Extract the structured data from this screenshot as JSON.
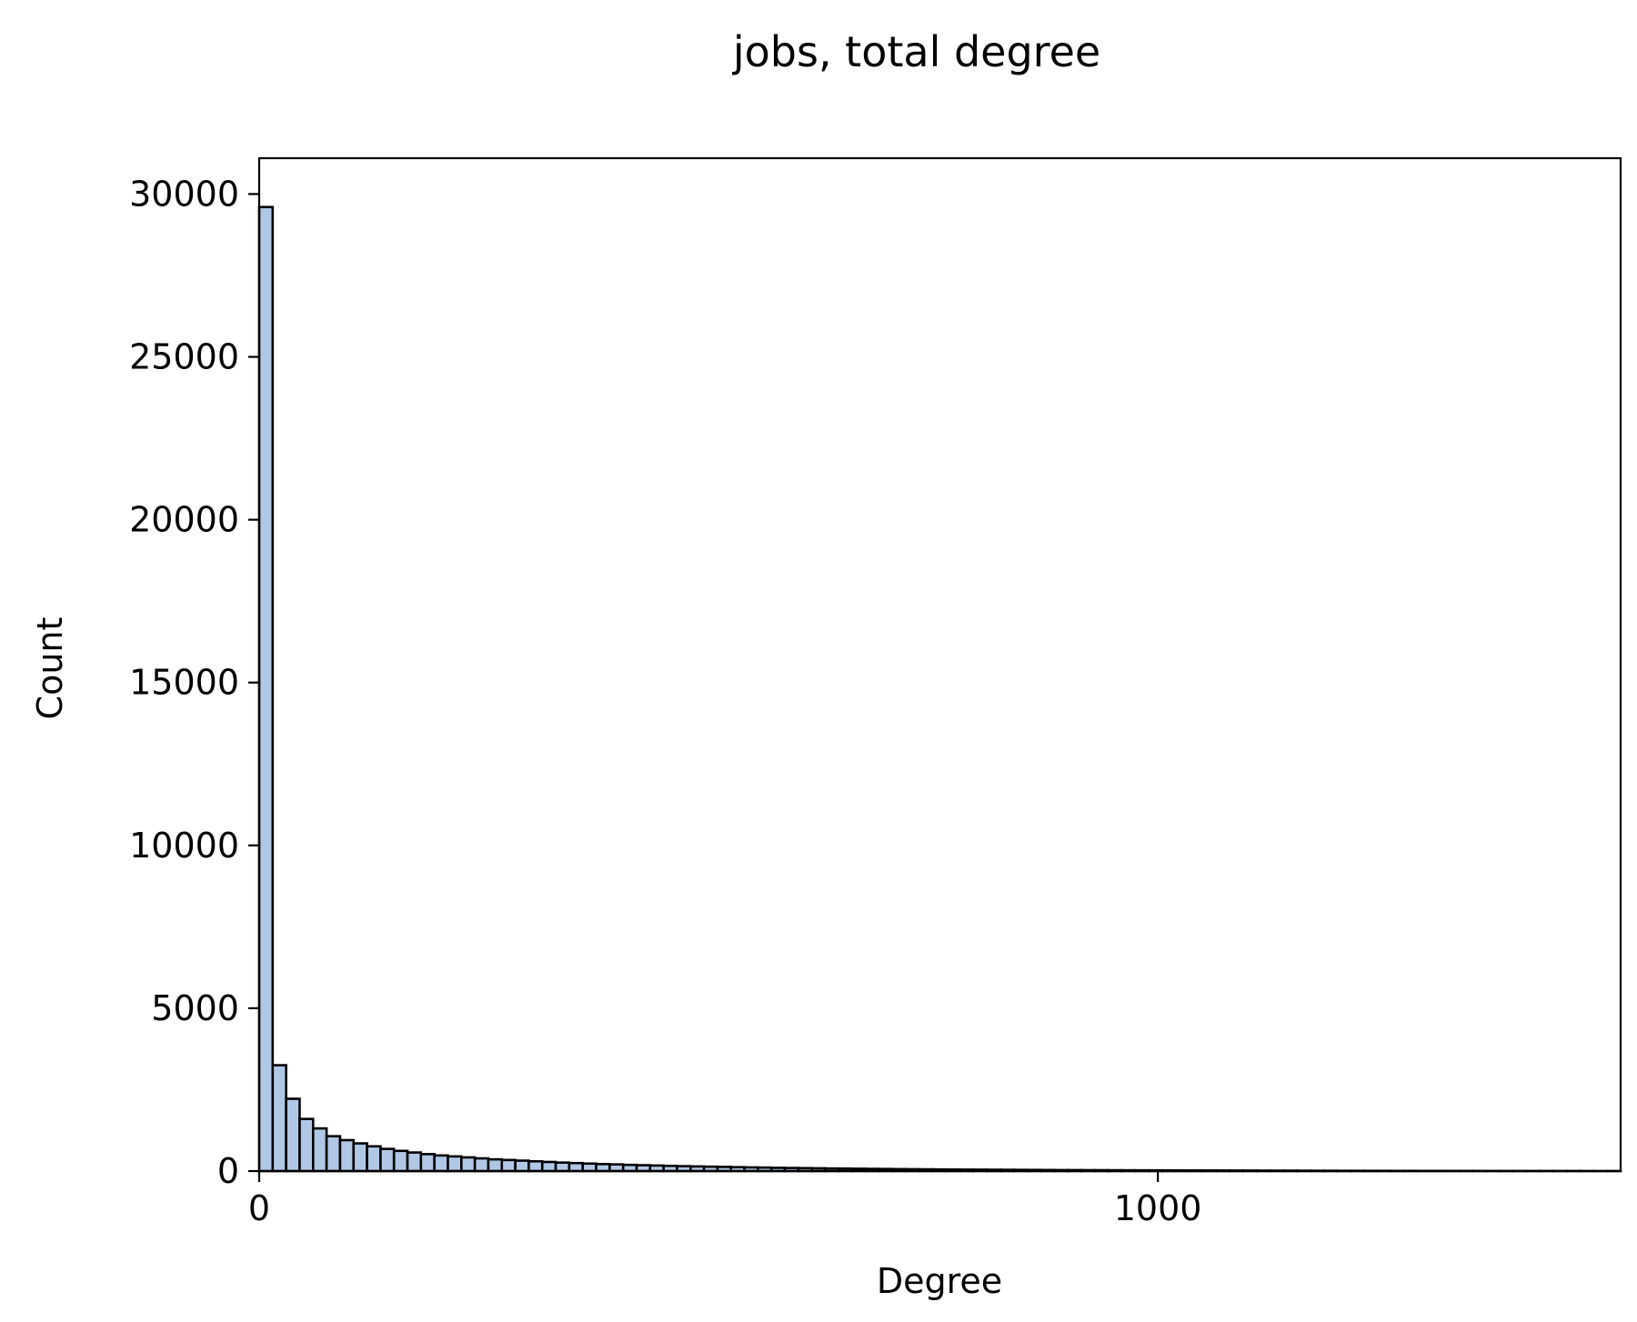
{
  "chart_data": {
    "type": "bar",
    "title": "jobs, total degree",
    "xlabel": "Degree",
    "ylabel": "Count",
    "xlim": [
      0,
      1515
    ],
    "ylim": [
      0,
      31100
    ],
    "xticks": [
      0,
      1000
    ],
    "yticks": [
      0,
      5000,
      10000,
      15000,
      20000,
      25000,
      30000
    ],
    "grid": false,
    "legend": "none",
    "bin_width": 15,
    "bar_color": "#b0c8e6",
    "edge_color": "#000000",
    "bin_start": [
      0,
      15,
      30,
      45,
      60,
      75,
      90,
      105,
      120,
      135,
      150,
      165,
      180,
      195,
      210,
      225,
      240,
      255,
      270,
      285,
      300,
      315,
      330,
      345,
      360,
      375,
      390,
      405,
      420,
      435,
      450,
      465,
      480,
      495,
      510,
      525,
      540,
      555,
      570,
      585,
      600,
      615,
      630,
      645,
      660,
      675,
      690,
      705,
      720,
      735,
      750,
      765,
      780,
      795,
      810,
      825,
      840,
      855,
      870,
      885,
      900,
      915,
      930,
      945,
      960,
      975,
      990,
      1005,
      1020,
      1035,
      1050,
      1065,
      1080,
      1095,
      1110,
      1125,
      1140,
      1155,
      1170,
      1185,
      1200,
      1215,
      1230,
      1245,
      1260,
      1275,
      1290,
      1305,
      1320,
      1335,
      1350,
      1365,
      1380,
      1395,
      1410,
      1425,
      1440,
      1455,
      1470,
      1485,
      1500
    ],
    "counts": [
      29600,
      3250,
      2220,
      1600,
      1310,
      1070,
      950,
      850,
      760,
      680,
      620,
      570,
      520,
      480,
      450,
      420,
      390,
      360,
      340,
      320,
      300,
      280,
      260,
      245,
      230,
      215,
      205,
      190,
      180,
      170,
      160,
      150,
      142,
      135,
      128,
      120,
      113,
      107,
      100,
      95,
      90,
      85,
      80,
      76,
      72,
      68,
      64,
      60,
      57,
      54,
      51,
      48,
      45,
      43,
      41,
      39,
      37,
      35,
      33,
      31,
      30,
      28,
      27,
      25,
      24,
      23,
      22,
      21,
      20,
      19,
      18,
      17,
      16,
      15,
      14,
      13,
      12,
      11,
      10,
      9,
      8,
      8,
      7,
      7,
      6,
      6,
      5,
      5,
      4,
      4,
      4,
      3,
      3,
      3,
      2,
      2,
      2,
      2,
      1,
      1,
      1
    ]
  }
}
